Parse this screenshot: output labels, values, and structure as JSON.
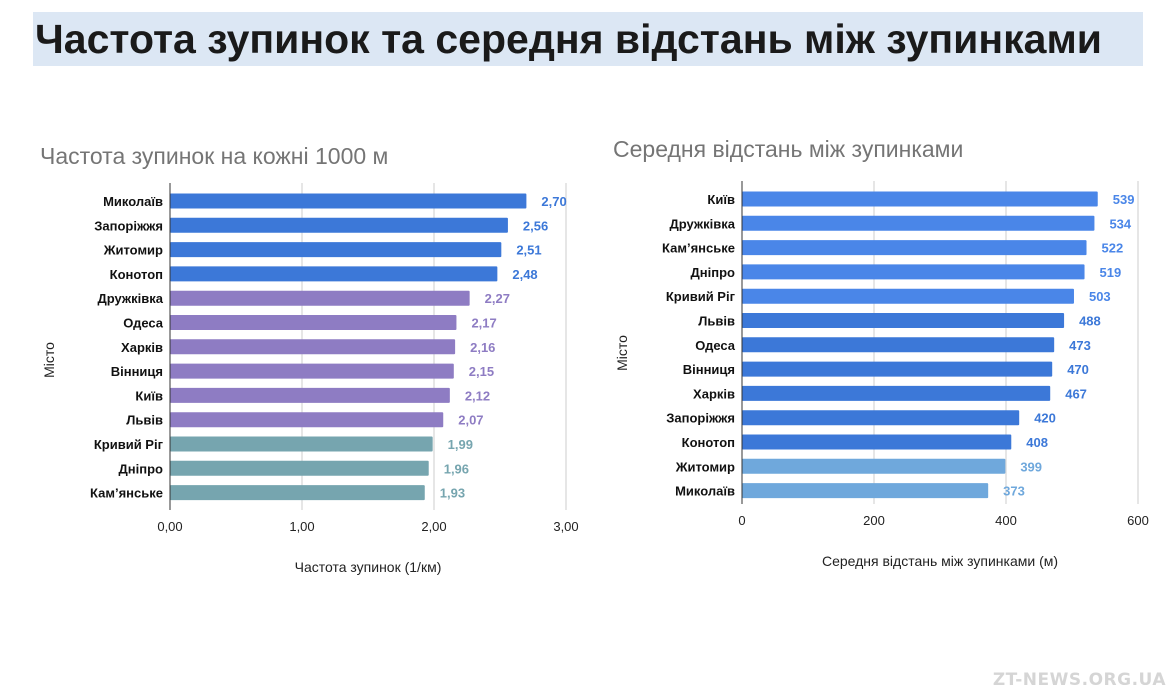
{
  "page": {
    "title": "Частота зупинок та середня відстань між зупинками",
    "watermark": "ZT-NEWS.ORG.UA"
  },
  "chart_data": [
    {
      "type": "bar",
      "orientation": "horizontal",
      "title": "Частота зупинок на кожні 1000 м",
      "xlabel": "Частота зупинок (1/км)",
      "ylabel": "Місто",
      "xlim": [
        0,
        3
      ],
      "xticks": [
        "0,00",
        "1,00",
        "2,00",
        "3,00"
      ],
      "grid": true,
      "categories": [
        "Миколаїв",
        "Запоріжжя",
        "Житомир",
        "Конотоп",
        "Дружківка",
        "Одеса",
        "Харків",
        "Вінниця",
        "Київ",
        "Львів",
        "Кривий Ріг",
        "Дніпро",
        "Кам’янське"
      ],
      "values": [
        2.7,
        2.56,
        2.51,
        2.48,
        2.27,
        2.17,
        2.16,
        2.15,
        2.12,
        2.07,
        1.99,
        1.96,
        1.93
      ],
      "value_labels": [
        "2,70",
        "2,56",
        "2,51",
        "2,48",
        "2,27",
        "2,17",
        "2,16",
        "2,15",
        "2,12",
        "2,07",
        "1,99",
        "1,96",
        "1,93"
      ],
      "colors": [
        "#3c78d8",
        "#3c78d8",
        "#3c78d8",
        "#3c78d8",
        "#8e7cc3",
        "#8e7cc3",
        "#8e7cc3",
        "#8e7cc3",
        "#8e7cc3",
        "#8e7cc3",
        "#76a5af",
        "#76a5af",
        "#76a5af"
      ]
    },
    {
      "type": "bar",
      "orientation": "horizontal",
      "title": "Середня відстань між зупинками",
      "xlabel": "Середня відстань між зупинками (м)",
      "ylabel": "Місто",
      "xlim": [
        0,
        600
      ],
      "xticks": [
        "0",
        "200",
        "400",
        "600"
      ],
      "grid": true,
      "categories": [
        "Київ",
        "Дружківка",
        "Кам’янське",
        "Дніпро",
        "Кривий Ріг",
        "Львів",
        "Одеса",
        "Вінниця",
        "Харків",
        "Запоріжжя",
        "Конотоп",
        "Житомир",
        "Миколаїв"
      ],
      "values": [
        539,
        534,
        522,
        519,
        503,
        488,
        473,
        470,
        467,
        420,
        408,
        399,
        373
      ],
      "value_labels": [
        "539",
        "534",
        "522",
        "519",
        "503",
        "488",
        "473",
        "470",
        "467",
        "420",
        "408",
        "399",
        "373"
      ],
      "colors": [
        "#4a86e8",
        "#4a86e8",
        "#4a86e8",
        "#4a86e8",
        "#4a86e8",
        "#3c78d8",
        "#3c78d8",
        "#3c78d8",
        "#3c78d8",
        "#3c78d8",
        "#3c78d8",
        "#6fa8dc",
        "#6fa8dc"
      ]
    }
  ]
}
